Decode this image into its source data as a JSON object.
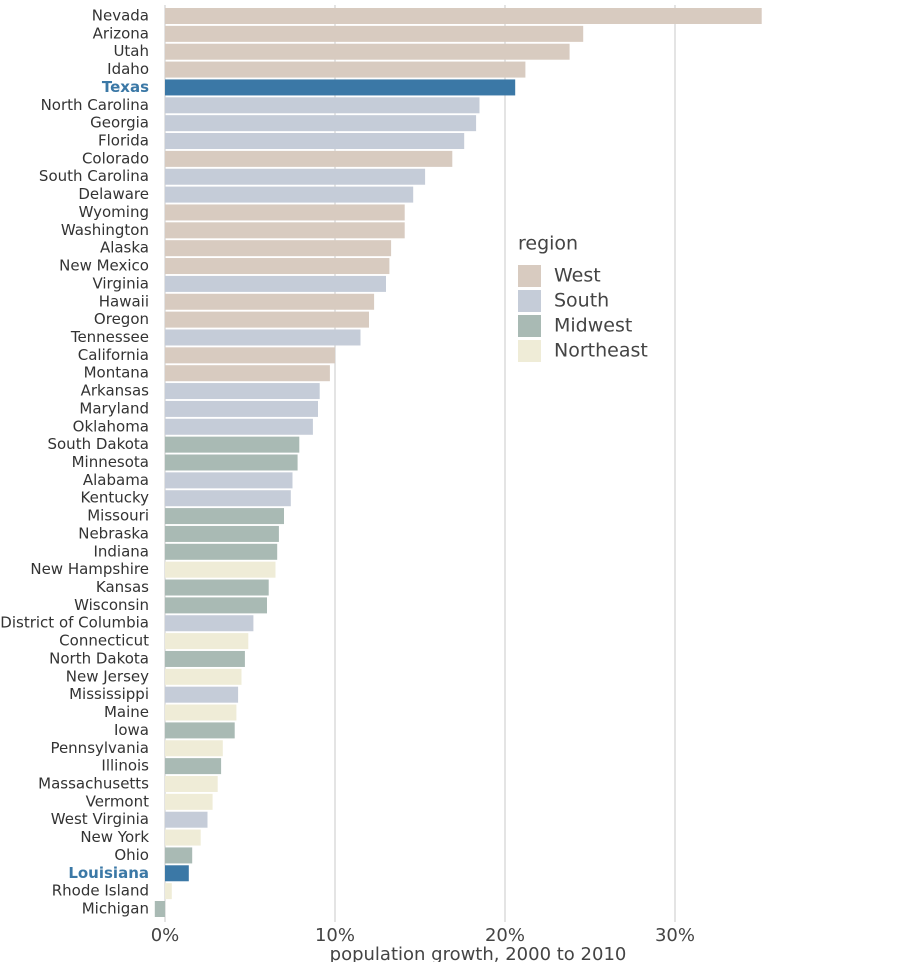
{
  "chart_data": {
    "type": "bar",
    "orientation": "horizontal",
    "categories": [
      "Nevada",
      "Arizona",
      "Utah",
      "Idaho",
      "Texas",
      "North Carolina",
      "Georgia",
      "Florida",
      "Colorado",
      "South Carolina",
      "Delaware",
      "Wyoming",
      "Washington",
      "Alaska",
      "New Mexico",
      "Virginia",
      "Hawaii",
      "Oregon",
      "Tennessee",
      "California",
      "Montana",
      "Arkansas",
      "Maryland",
      "Oklahoma",
      "South Dakota",
      "Minnesota",
      "Alabama",
      "Kentucky",
      "Missouri",
      "Nebraska",
      "Indiana",
      "New Hampshire",
      "Kansas",
      "Wisconsin",
      "District of Columbia",
      "Connecticut",
      "North Dakota",
      "New Jersey",
      "Mississippi",
      "Maine",
      "Iowa",
      "Pennsylvania",
      "Illinois",
      "Massachusetts",
      "Vermont",
      "West Virginia",
      "New York",
      "Ohio",
      "Louisiana",
      "Rhode Island",
      "Michigan"
    ],
    "values": [
      35.1,
      24.6,
      23.8,
      21.2,
      20.6,
      18.5,
      18.3,
      17.6,
      16.9,
      15.3,
      14.6,
      14.1,
      14.1,
      13.3,
      13.2,
      13.0,
      12.3,
      12.0,
      11.5,
      10.0,
      9.7,
      9.1,
      9.0,
      8.7,
      7.9,
      7.8,
      7.5,
      7.4,
      7.0,
      6.7,
      6.6,
      6.5,
      6.1,
      6.0,
      5.2,
      4.9,
      4.7,
      4.5,
      4.3,
      4.2,
      4.1,
      3.4,
      3.3,
      3.1,
      2.8,
      2.5,
      2.1,
      1.6,
      1.4,
      0.4,
      -0.6
    ],
    "regions": [
      "West",
      "West",
      "West",
      "West",
      "South",
      "South",
      "South",
      "South",
      "West",
      "South",
      "South",
      "West",
      "West",
      "West",
      "West",
      "South",
      "West",
      "West",
      "South",
      "West",
      "West",
      "South",
      "South",
      "South",
      "Midwest",
      "Midwest",
      "South",
      "South",
      "Midwest",
      "Midwest",
      "Midwest",
      "Northeast",
      "Midwest",
      "Midwest",
      "South",
      "Northeast",
      "Midwest",
      "Northeast",
      "South",
      "Northeast",
      "Midwest",
      "Northeast",
      "Midwest",
      "Northeast",
      "Northeast",
      "South",
      "Northeast",
      "Midwest",
      "South",
      "Northeast",
      "Midwest"
    ],
    "highlighted": [
      "Texas",
      "Louisiana"
    ],
    "highlight_color": "#3b78a6",
    "legend": {
      "title": "region",
      "entries": [
        {
          "name": "West",
          "color": "#d8cbc0"
        },
        {
          "name": "South",
          "color": "#c5ccd8"
        },
        {
          "name": "Midwest",
          "color": "#a9bab4"
        },
        {
          "name": "Northeast",
          "color": "#efecd7"
        }
      ]
    },
    "xlim": [
      -1,
      36
    ],
    "xticks": [
      {
        "value": 0,
        "label": "0%"
      },
      {
        "value": 10,
        "label": "10%"
      },
      {
        "value": 20,
        "label": "20%"
      },
      {
        "value": 30,
        "label": "30%"
      }
    ],
    "grid": true,
    "x_label": "population growth, 2000 to 2010"
  }
}
